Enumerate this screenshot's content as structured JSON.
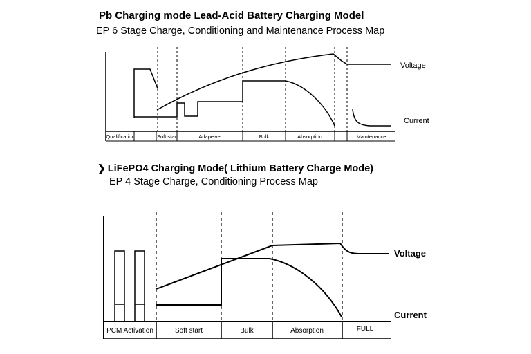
{
  "pb": {
    "title": "Pb Charging mode Lead-Acid Battery Charging Model",
    "subtitle": "EP 6 Stage Charge, Conditioning and Maintenance Process Map",
    "voltage_label": "Voltage",
    "current_label": "Current",
    "stages": [
      "Qualification",
      "Soft start",
      "Adapeive",
      "Bulk",
      "Absorption",
      "",
      "Maintenance"
    ]
  },
  "lfp": {
    "bullet": "❯",
    "title": "LiFePO4 Charging Mode( Lithium Battery Charge Mode)",
    "subtitle": "EP 4 Stage Charge, Conditioning Process Map",
    "voltage_label": "Voltage",
    "current_label": "Current",
    "stages": [
      "PCM Activation",
      "Soft start",
      "Bulk",
      "Absorption",
      "FULL"
    ]
  }
}
